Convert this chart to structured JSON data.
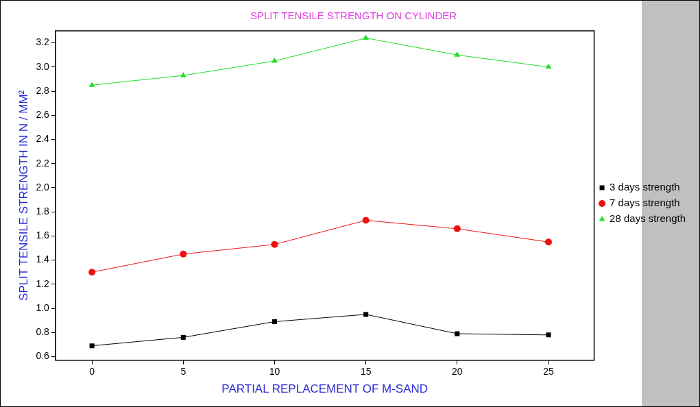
{
  "chart_data": {
    "type": "line",
    "title": "SPLIT TENSILE STRENGTH ON CYLINDER",
    "xlabel": "PARTIAL REPLACEMENT OF M-SAND",
    "ylabel": "SPLIT TENSILE STRENGTH IN N / MM²",
    "x": [
      0,
      5,
      10,
      15,
      20,
      25
    ],
    "series": [
      {
        "name": "3 days strength",
        "color": "#000000",
        "marker": "square",
        "values": [
          0.69,
          0.76,
          0.89,
          0.95,
          0.79,
          0.78
        ]
      },
      {
        "name": "7 days strength",
        "color": "#ee1111",
        "marker": "circle",
        "values": [
          1.3,
          1.45,
          1.53,
          1.73,
          1.66,
          1.55
        ]
      },
      {
        "name": "28 days strength",
        "color": "#22dd22",
        "marker": "triangle",
        "values": [
          2.85,
          2.93,
          3.05,
          3.24,
          3.1,
          3.0
        ]
      }
    ],
    "xlim": [
      -2,
      27.5
    ],
    "xticks": [
      0,
      5,
      10,
      15,
      20,
      25
    ],
    "ylim": [
      0.57,
      3.3
    ],
    "yticks": [
      0.6,
      0.8,
      {
        "value": 1,
        "label": "1.0"
      },
      1.2,
      1.4,
      1.6,
      1.8,
      {
        "value": 2,
        "label": "2.0"
      },
      2.2,
      2.4,
      2.6,
      2.8,
      {
        "value": 3,
        "label": "3.0"
      },
      3.2
    ],
    "grid": false,
    "legend": "right",
    "line_style": "solid"
  }
}
